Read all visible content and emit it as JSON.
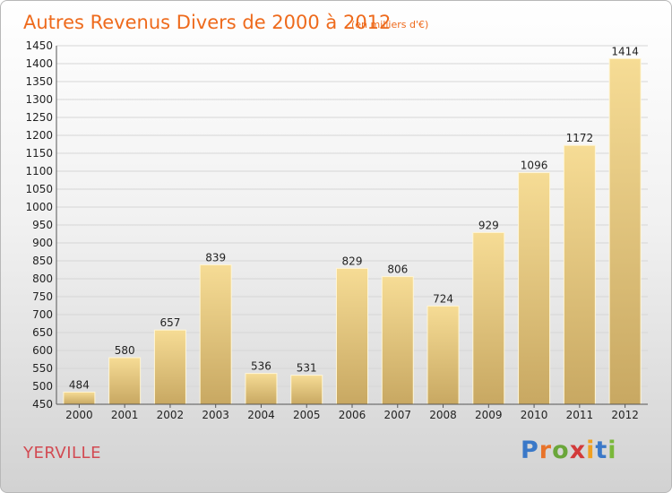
{
  "chart_data": {
    "type": "bar",
    "title": "Autres Revenus Divers de 2000 à 2012",
    "subtitle": "(en milliers d'€)",
    "categories": [
      "2000",
      "2001",
      "2002",
      "2003",
      "2004",
      "2005",
      "2006",
      "2007",
      "2008",
      "2009",
      "2010",
      "2011",
      "2012"
    ],
    "values": [
      484,
      580,
      657,
      839,
      536,
      531,
      829,
      806,
      724,
      929,
      1096,
      1172,
      1414
    ],
    "ylim": [
      450,
      1450
    ],
    "yticks": [
      450,
      500,
      550,
      600,
      650,
      700,
      750,
      800,
      850,
      900,
      950,
      1000,
      1050,
      1100,
      1150,
      1200,
      1250,
      1300,
      1350,
      1400,
      1450
    ],
    "grid": true,
    "bar_color_top": "#f6dc95",
    "bar_color_bottom": "#c8a862"
  },
  "footer": {
    "town": "YERVILLE",
    "logo_text": "Proxiti",
    "logo_colors": [
      "#3a78c8",
      "#e8732a",
      "#6aa63a",
      "#d23a3a",
      "#f0a020",
      "#3a78c8",
      "#7ab83a"
    ]
  }
}
